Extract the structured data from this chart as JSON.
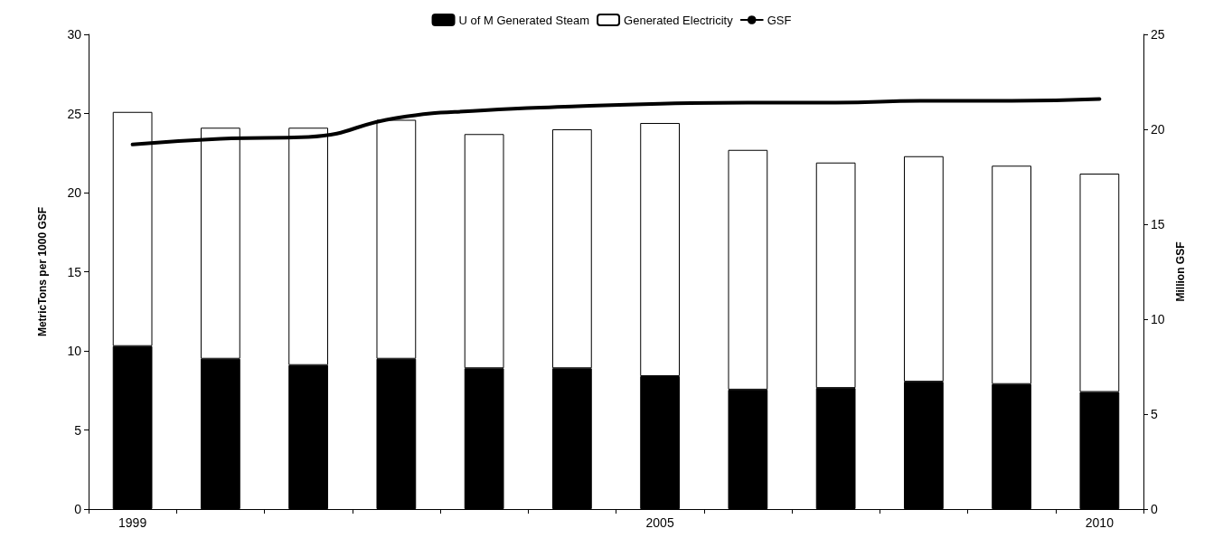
{
  "chart_data": {
    "type": "bar",
    "stacked": true,
    "ylabel": "MetricTons per 1000 GSF",
    "y2label": "Million GSF",
    "categories": [
      "1999",
      null,
      null,
      null,
      null,
      null,
      "2005",
      null,
      null,
      null,
      null,
      "2010"
    ],
    "series": [
      {
        "name": "U of M Generated Steam",
        "color": "#000000",
        "values": [
          10.3,
          9.5,
          9.1,
          9.5,
          8.9,
          8.9,
          8.4,
          7.55,
          7.65,
          8.05,
          7.9,
          7.4
        ]
      },
      {
        "name": "Generated Electricity",
        "color": "#ffffff",
        "values": [
          14.8,
          14.6,
          15.0,
          15.1,
          14.8,
          15.1,
          16.0,
          15.15,
          14.25,
          14.25,
          13.8,
          13.8
        ]
      },
      {
        "name": "GSF",
        "type": "line",
        "axis": "y2",
        "color": "#000000",
        "values": [
          19.2,
          19.5,
          19.6,
          20.6,
          21.0,
          21.2,
          21.35,
          21.4,
          21.4,
          21.5,
          21.5,
          21.6
        ]
      }
    ],
    "ylim": [
      0,
      30
    ],
    "yticks": [
      0,
      5,
      10,
      15,
      20,
      25,
      30
    ],
    "y2lim": [
      0,
      25
    ],
    "y2ticks": [
      0,
      5,
      10,
      15,
      20,
      25
    ],
    "grid": false,
    "legend": "top",
    "marker": "none",
    "line_style": "solid"
  }
}
